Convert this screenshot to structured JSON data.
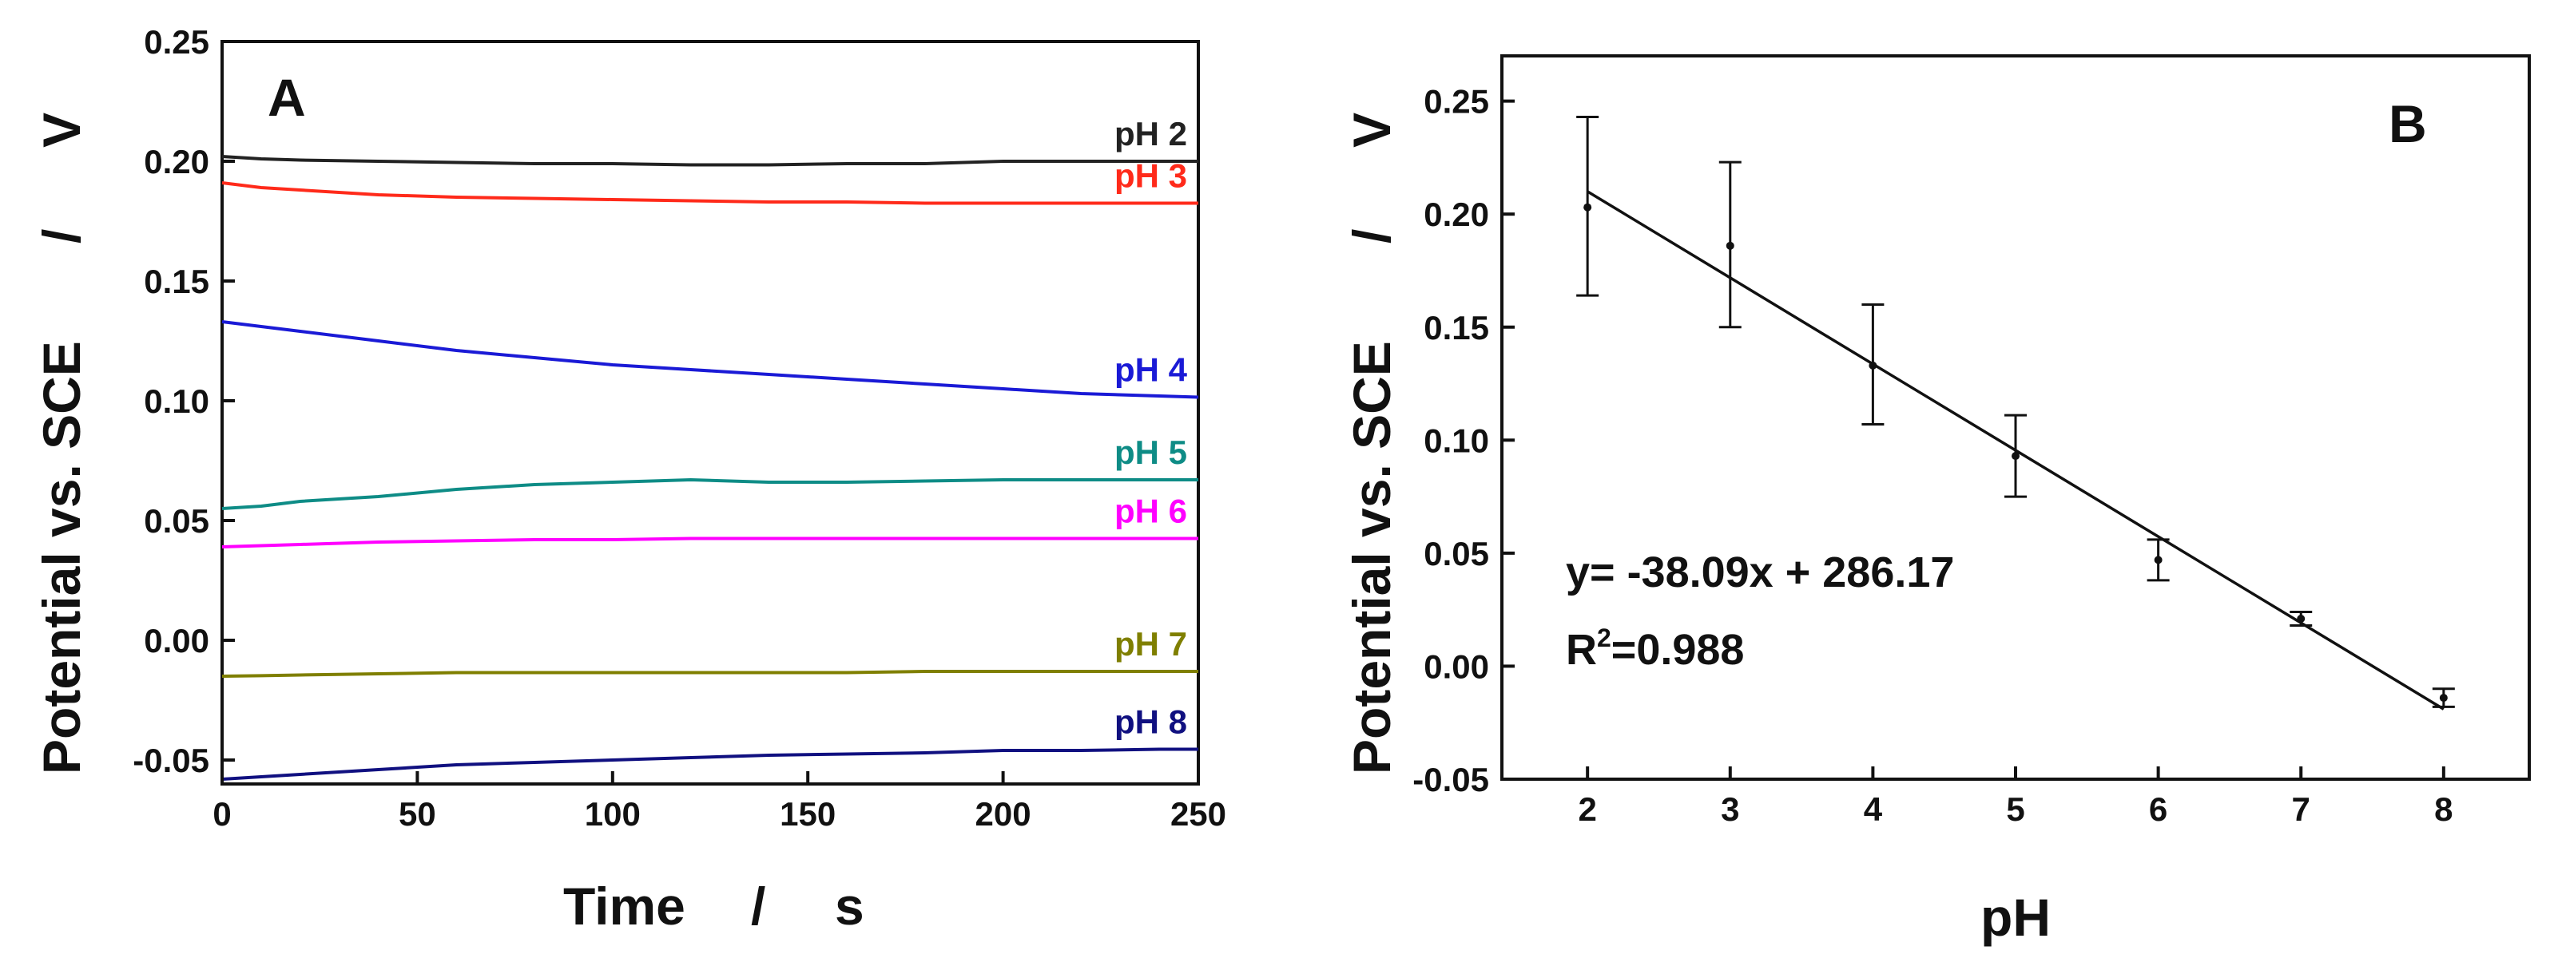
{
  "chart_data": [
    {
      "type": "line",
      "panel_label": "A",
      "title": "",
      "xlabel": "Time / s",
      "xlabel_parts": [
        "Time",
        "/",
        "s"
      ],
      "ylabel": "Potential vs. SCE / V",
      "ylabel_parts": [
        "Potential vs. SCE",
        "/",
        "V"
      ],
      "xlim": [
        0,
        250
      ],
      "ylim": [
        -0.06,
        0.25
      ],
      "xticks": [
        "0",
        "50",
        "100",
        "150",
        "200",
        "250"
      ],
      "yticks": [
        "-0.05",
        "0.00",
        "0.05",
        "0.10",
        "0.15",
        "0.20",
        "0.25"
      ],
      "grid": false,
      "x": [
        0,
        10,
        20,
        40,
        60,
        80,
        100,
        120,
        140,
        160,
        180,
        200,
        220,
        240,
        250
      ],
      "series": [
        {
          "name": "pH 2",
          "color": "#222222",
          "values": [
            0.202,
            0.201,
            0.2005,
            0.2,
            0.1995,
            0.199,
            0.199,
            0.1985,
            0.1985,
            0.199,
            0.199,
            0.2,
            0.2,
            0.2,
            0.2
          ]
        },
        {
          "name": "pH 3",
          "color": "#ff2a1a",
          "values": [
            0.191,
            0.189,
            0.188,
            0.186,
            0.185,
            0.1845,
            0.184,
            0.1835,
            0.183,
            0.183,
            0.1825,
            0.1825,
            0.1825,
            0.1825,
            0.1825
          ]
        },
        {
          "name": "pH 4",
          "color": "#1a1ad6",
          "values": [
            0.133,
            0.131,
            0.129,
            0.125,
            0.121,
            0.118,
            0.115,
            0.113,
            0.111,
            0.109,
            0.107,
            0.105,
            0.103,
            0.102,
            0.1015
          ]
        },
        {
          "name": "pH 5",
          "color": "#0e8c86",
          "values": [
            0.055,
            0.056,
            0.058,
            0.06,
            0.063,
            0.065,
            0.066,
            0.067,
            0.066,
            0.066,
            0.0665,
            0.067,
            0.067,
            0.067,
            0.067
          ]
        },
        {
          "name": "pH 6",
          "color": "#ff00ff",
          "values": [
            0.039,
            0.0395,
            0.04,
            0.041,
            0.0415,
            0.042,
            0.042,
            0.0425,
            0.0425,
            0.0425,
            0.0425,
            0.0425,
            0.0425,
            0.0425,
            0.0425
          ]
        },
        {
          "name": "pH 7",
          "color": "#7f7f00",
          "values": [
            -0.015,
            -0.0148,
            -0.0145,
            -0.014,
            -0.0135,
            -0.0135,
            -0.0135,
            -0.0135,
            -0.0135,
            -0.0135,
            -0.013,
            -0.013,
            -0.013,
            -0.013,
            -0.013
          ]
        },
        {
          "name": "pH 8",
          "color": "#101080",
          "values": [
            -0.058,
            -0.057,
            -0.056,
            -0.054,
            -0.052,
            -0.051,
            -0.05,
            -0.049,
            -0.048,
            -0.0475,
            -0.047,
            -0.046,
            -0.046,
            -0.0455,
            -0.0455
          ]
        }
      ]
    },
    {
      "type": "scatter",
      "panel_label": "B",
      "title": "",
      "xlabel": "pH",
      "ylabel": "Potential vs. SCE / V",
      "ylabel_parts": [
        "Potential vs. SCE",
        "/",
        "V"
      ],
      "xlim": [
        1.4,
        8.6
      ],
      "ylim": [
        -0.05,
        0.27
      ],
      "xticks": [
        "2",
        "3",
        "4",
        "5",
        "6",
        "7",
        "8"
      ],
      "yticks": [
        "-0.05",
        "0.00",
        "0.05",
        "0.10",
        "0.15",
        "0.20",
        "0.25"
      ],
      "grid": false,
      "x": [
        2,
        3,
        4,
        5,
        6,
        7,
        8
      ],
      "values": [
        0.203,
        0.186,
        0.133,
        0.093,
        0.047,
        0.021,
        -0.014
      ],
      "error_low": [
        0.164,
        0.15,
        0.107,
        0.075,
        0.038,
        0.018,
        -0.018
      ],
      "error_high": [
        0.243,
        0.223,
        0.16,
        0.111,
        0.056,
        0.024,
        -0.01
      ],
      "fit_line": {
        "x": [
          2,
          8
        ],
        "y": [
          0.21,
          -0.019
        ]
      },
      "annotation_equation": "y= -38.09x + 286.17",
      "annotation_r2_prefix": "R",
      "annotation_r2_sup": "2",
      "annotation_r2_value": "=0.988"
    }
  ]
}
